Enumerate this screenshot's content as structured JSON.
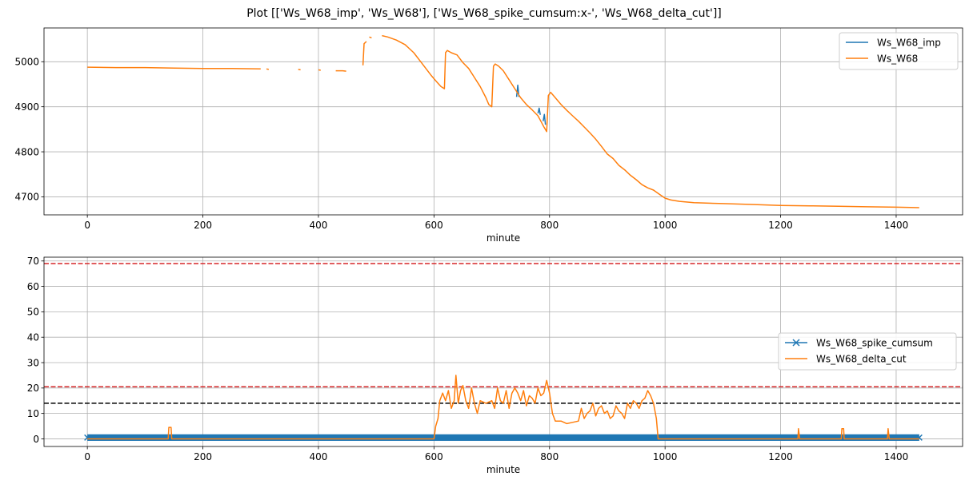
{
  "title": "Plot [['Ws_W68_imp', 'Ws_W68'], ['Ws_W68_spike_cumsum:x-', 'Ws_W68_delta_cut']]",
  "colors": {
    "blue": "#1f77b4",
    "orange": "#ff7f0e",
    "red": "#d62728",
    "black": "#000000",
    "grid": "#b0b0b0"
  },
  "chart_data": [
    {
      "type": "line",
      "xlabel": "minute",
      "ylabel": "",
      "xlim": [
        -75,
        1515
      ],
      "ylim": [
        4660,
        5075
      ],
      "xticks": [
        0,
        200,
        400,
        600,
        800,
        1000,
        1200,
        1400
      ],
      "xtick_labels": [
        "0",
        "200",
        "400",
        "600",
        "800",
        "1000",
        "1200",
        "1400"
      ],
      "yticks": [
        4700,
        4800,
        4900,
        5000
      ],
      "ytick_labels": [
        "4700",
        "4800",
        "4900",
        "5000"
      ],
      "grid": true,
      "legend": "top-right",
      "series": [
        {
          "name": "Ws_W68_imp",
          "color": "#1f77b4",
          "segments": [
            [
              [
                743,
                4922
              ],
              [
                745,
                4948
              ],
              [
                747,
                4922
              ]
            ],
            [
              [
                780,
                4885
              ],
              [
                782,
                4897
              ],
              [
                784,
                4882
              ]
            ],
            [
              [
                789,
                4868
              ],
              [
                791,
                4883
              ],
              [
                793,
                4860
              ]
            ]
          ]
        },
        {
          "name": "Ws_W68",
          "color": "#ff7f0e",
          "segments": [
            [
              [
                0,
                4988
              ],
              [
                50,
                4987
              ],
              [
                100,
                4987
              ],
              [
                150,
                4986
              ],
              [
                200,
                4985
              ],
              [
                250,
                4985
              ],
              [
                300,
                4984
              ]
            ],
            [
              [
                310,
                4984
              ],
              [
                314,
                4983
              ]
            ],
            [
              [
                365,
                4983
              ],
              [
                369,
                4982
              ]
            ],
            [
              [
                400,
                4982
              ],
              [
                404,
                4981
              ]
            ],
            [
              [
                430,
                4980
              ],
              [
                436,
                4980
              ],
              [
                442,
                4980
              ],
              [
                448,
                4979
              ]
            ],
            [
              [
                477,
                4992
              ],
              [
                479,
                5040
              ],
              [
                483,
                5045
              ]
            ],
            [
              [
                488,
                5055
              ],
              [
                492,
                5053
              ]
            ],
            [
              [
                510,
                5058
              ],
              [
                520,
                5055
              ],
              [
                535,
                5048
              ],
              [
                550,
                5038
              ],
              [
                565,
                5020
              ],
              [
                580,
                4995
              ],
              [
                595,
                4970
              ],
              [
                605,
                4955
              ],
              [
                612,
                4945
              ],
              [
                618,
                4940
              ],
              [
                620,
                5020
              ],
              [
                623,
                5025
              ],
              [
                630,
                5020
              ],
              [
                640,
                5015
              ],
              [
                650,
                4998
              ],
              [
                660,
                4985
              ],
              [
                670,
                4965
              ],
              [
                680,
                4945
              ],
              [
                690,
                4920
              ],
              [
                695,
                4905
              ],
              [
                700,
                4900
              ],
              [
                703,
                4990
              ],
              [
                706,
                4995
              ],
              [
                712,
                4990
              ],
              [
                720,
                4980
              ],
              [
                730,
                4960
              ],
              [
                740,
                4940
              ],
              [
                750,
                4920
              ],
              [
                760,
                4905
              ],
              [
                770,
                4893
              ],
              [
                780,
                4880
              ],
              [
                785,
                4868
              ],
              [
                790,
                4856
              ],
              [
                795,
                4845
              ],
              [
                798,
                4925
              ],
              [
                802,
                4932
              ],
              [
                810,
                4920
              ],
              [
                820,
                4905
              ],
              [
                830,
                4892
              ],
              [
                840,
                4880
              ],
              [
                850,
                4868
              ],
              [
                860,
                4855
              ],
              [
                870,
                4842
              ],
              [
                880,
                4828
              ],
              [
                890,
                4812
              ],
              [
                900,
                4795
              ],
              [
                910,
                4785
              ],
              [
                920,
                4770
              ],
              [
                930,
                4760
              ],
              [
                940,
                4748
              ],
              [
                950,
                4738
              ],
              [
                960,
                4727
              ],
              [
                970,
                4720
              ],
              [
                980,
                4715
              ],
              [
                990,
                4706
              ],
              [
                1000,
                4697
              ],
              [
                1010,
                4693
              ],
              [
                1025,
                4690
              ],
              [
                1050,
                4687
              ],
              [
                1100,
                4685
              ],
              [
                1150,
                4683
              ],
              [
                1200,
                4681
              ],
              [
                1250,
                4680
              ],
              [
                1300,
                4679
              ],
              [
                1350,
                4678
              ],
              [
                1400,
                4677
              ],
              [
                1440,
                4676
              ]
            ]
          ]
        }
      ]
    },
    {
      "type": "line",
      "xlabel": "minute",
      "ylabel": "",
      "xlim": [
        -75,
        1515
      ],
      "ylim": [
        -3,
        71.5
      ],
      "xticks": [
        0,
        200,
        400,
        600,
        800,
        1000,
        1200,
        1400
      ],
      "xtick_labels": [
        "0",
        "200",
        "400",
        "600",
        "800",
        "1000",
        "1200",
        "1400"
      ],
      "yticks": [
        0,
        10,
        20,
        30,
        40,
        50,
        60,
        70
      ],
      "ytick_labels": [
        "0",
        "10",
        "20",
        "30",
        "40",
        "50",
        "60",
        "70"
      ],
      "grid": true,
      "legend": "center-right",
      "hlines": [
        {
          "y": 69,
          "color": "#d62728",
          "style": "dashed"
        },
        {
          "y": 20.5,
          "color": "#d62728",
          "style": "dashed"
        },
        {
          "y": 14,
          "color": "#000000",
          "style": "dashed"
        }
      ],
      "series": [
        {
          "name": "Ws_W68_spike_cumsum",
          "color": "#1f77b4",
          "marker": "x",
          "x_range": [
            0,
            1440
          ],
          "y_values": [
            0,
            1
          ]
        },
        {
          "name": "Ws_W68_delta_cut",
          "color": "#ff7f0e",
          "segments": [
            [
              [
                0,
                0
              ],
              [
                140,
                0
              ],
              [
                141,
                4.5
              ],
              [
                145,
                4.5
              ],
              [
                146,
                0
              ],
              [
                600,
                0
              ],
              [
                603,
                5
              ],
              [
                607,
                8
              ],
              [
                610,
                15
              ],
              [
                615,
                18
              ],
              [
                620,
                15
              ],
              [
                625,
                19
              ],
              [
                630,
                12
              ],
              [
                635,
                15
              ],
              [
                638,
                25
              ],
              [
                642,
                14
              ],
              [
                646,
                19
              ],
              [
                650,
                21
              ],
              [
                655,
                15
              ],
              [
                660,
                12
              ],
              [
                665,
                20
              ],
              [
                670,
                14
              ],
              [
                675,
                10
              ],
              [
                680,
                15
              ],
              [
                690,
                14
              ],
              [
                700,
                15
              ],
              [
                705,
                12
              ],
              [
                710,
                20
              ],
              [
                715,
                15
              ],
              [
                720,
                14
              ],
              [
                725,
                19
              ],
              [
                730,
                12
              ],
              [
                735,
                18
              ],
              [
                740,
                20
              ],
              [
                745,
                18
              ],
              [
                750,
                15
              ],
              [
                755,
                19
              ],
              [
                760,
                13
              ],
              [
                765,
                17
              ],
              [
                770,
                16
              ],
              [
                775,
                14
              ],
              [
                780,
                20
              ],
              [
                785,
                17
              ],
              [
                790,
                18
              ],
              [
                795,
                23
              ],
              [
                800,
                18
              ],
              [
                805,
                10
              ],
              [
                810,
                7
              ],
              [
                820,
                7
              ],
              [
                830,
                6
              ],
              [
                840,
                6.5
              ],
              [
                850,
                7
              ],
              [
                855,
                12
              ],
              [
                860,
                8
              ],
              [
                865,
                10
              ],
              [
                870,
                11
              ],
              [
                875,
                14
              ],
              [
                880,
                9
              ],
              [
                885,
                12
              ],
              [
                890,
                13
              ],
              [
                895,
                10
              ],
              [
                900,
                11
              ],
              [
                905,
                8
              ],
              [
                910,
                9
              ],
              [
                915,
                13
              ],
              [
                920,
                11
              ],
              [
                925,
                10
              ],
              [
                930,
                8
              ],
              [
                935,
                14
              ],
              [
                940,
                12
              ],
              [
                945,
                15
              ],
              [
                950,
                14
              ],
              [
                955,
                12
              ],
              [
                960,
                15
              ],
              [
                965,
                16
              ],
              [
                970,
                19
              ],
              [
                975,
                17
              ],
              [
                980,
                14
              ],
              [
                985,
                8
              ],
              [
                988,
                0
              ],
              [
                1230,
                0
              ],
              [
                1231,
                4
              ],
              [
                1233,
                0
              ],
              [
                1305,
                0
              ],
              [
                1306,
                4
              ],
              [
                1309,
                4
              ],
              [
                1310,
                0
              ],
              [
                1385,
                0
              ],
              [
                1386,
                4
              ],
              [
                1388,
                0
              ],
              [
                1440,
                0
              ]
            ]
          ]
        }
      ]
    }
  ]
}
